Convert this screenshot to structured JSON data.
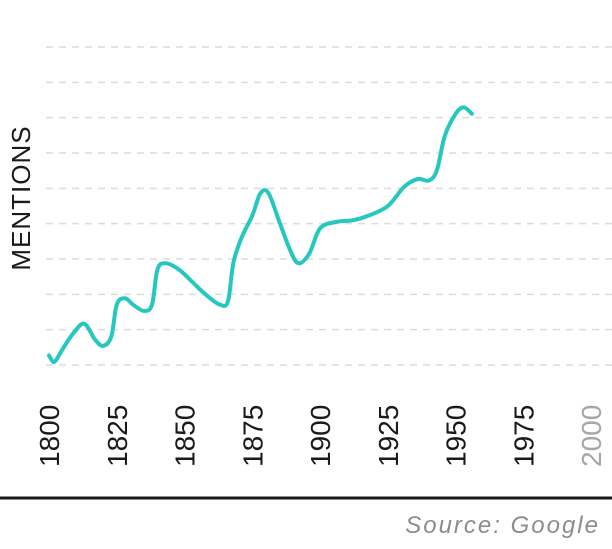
{
  "chart_data": {
    "type": "line",
    "ylabel": "MENTIONS",
    "source": "Source: Google",
    "xlim": [
      1800,
      2004
    ],
    "ylim": [
      0,
      10
    ],
    "grid": true,
    "legend": "none",
    "x_ticks": [
      {
        "value": 1800,
        "label": "1800",
        "muted": false
      },
      {
        "value": 1825,
        "label": "1825",
        "muted": false
      },
      {
        "value": 1850,
        "label": "1850",
        "muted": false
      },
      {
        "value": 1875,
        "label": "1875",
        "muted": false
      },
      {
        "value": 1900,
        "label": "1900",
        "muted": false
      },
      {
        "value": 1925,
        "label": "1925",
        "muted": false
      },
      {
        "value": 1950,
        "label": "1950",
        "muted": false
      },
      {
        "value": 1975,
        "label": "1975",
        "muted": false
      },
      {
        "value": 2000,
        "label": "2000",
        "muted": true
      }
    ],
    "series": [
      {
        "color": "#25c7be",
        "points": [
          [
            1800,
            0.3
          ],
          [
            1802,
            0.1
          ],
          [
            1805,
            0.5
          ],
          [
            1809,
            1.0
          ],
          [
            1813,
            1.3
          ],
          [
            1817,
            0.8
          ],
          [
            1820,
            0.6
          ],
          [
            1823,
            0.9
          ],
          [
            1825,
            1.9
          ],
          [
            1828,
            2.1
          ],
          [
            1831,
            1.9
          ],
          [
            1835,
            1.7
          ],
          [
            1838,
            1.9
          ],
          [
            1840,
            3.0
          ],
          [
            1843,
            3.2
          ],
          [
            1848,
            3.0
          ],
          [
            1853,
            2.6
          ],
          [
            1858,
            2.2
          ],
          [
            1863,
            1.9
          ],
          [
            1866,
            2.0
          ],
          [
            1868,
            3.2
          ],
          [
            1871,
            4.0
          ],
          [
            1875,
            4.7
          ],
          [
            1878,
            5.4
          ],
          [
            1881,
            5.4
          ],
          [
            1885,
            4.5
          ],
          [
            1889,
            3.6
          ],
          [
            1892,
            3.2
          ],
          [
            1896,
            3.5
          ],
          [
            1900,
            4.3
          ],
          [
            1906,
            4.5
          ],
          [
            1912,
            4.55
          ],
          [
            1918,
            4.7
          ],
          [
            1925,
            5.0
          ],
          [
            1931,
            5.6
          ],
          [
            1936,
            5.85
          ],
          [
            1940,
            5.8
          ],
          [
            1943,
            6.1
          ],
          [
            1946,
            7.2
          ],
          [
            1950,
            7.9
          ],
          [
            1953,
            8.1
          ],
          [
            1956,
            7.9
          ]
        ]
      }
    ],
    "style": {
      "axis_color": "#1a1a1a",
      "tick_color": "#1a1a1a",
      "muted_tick_color": "#a6a6a6",
      "grid_color": "#dcdcdc",
      "ylabel_color": "#1a1a1a",
      "source_color": "#8c8c8c"
    }
  }
}
